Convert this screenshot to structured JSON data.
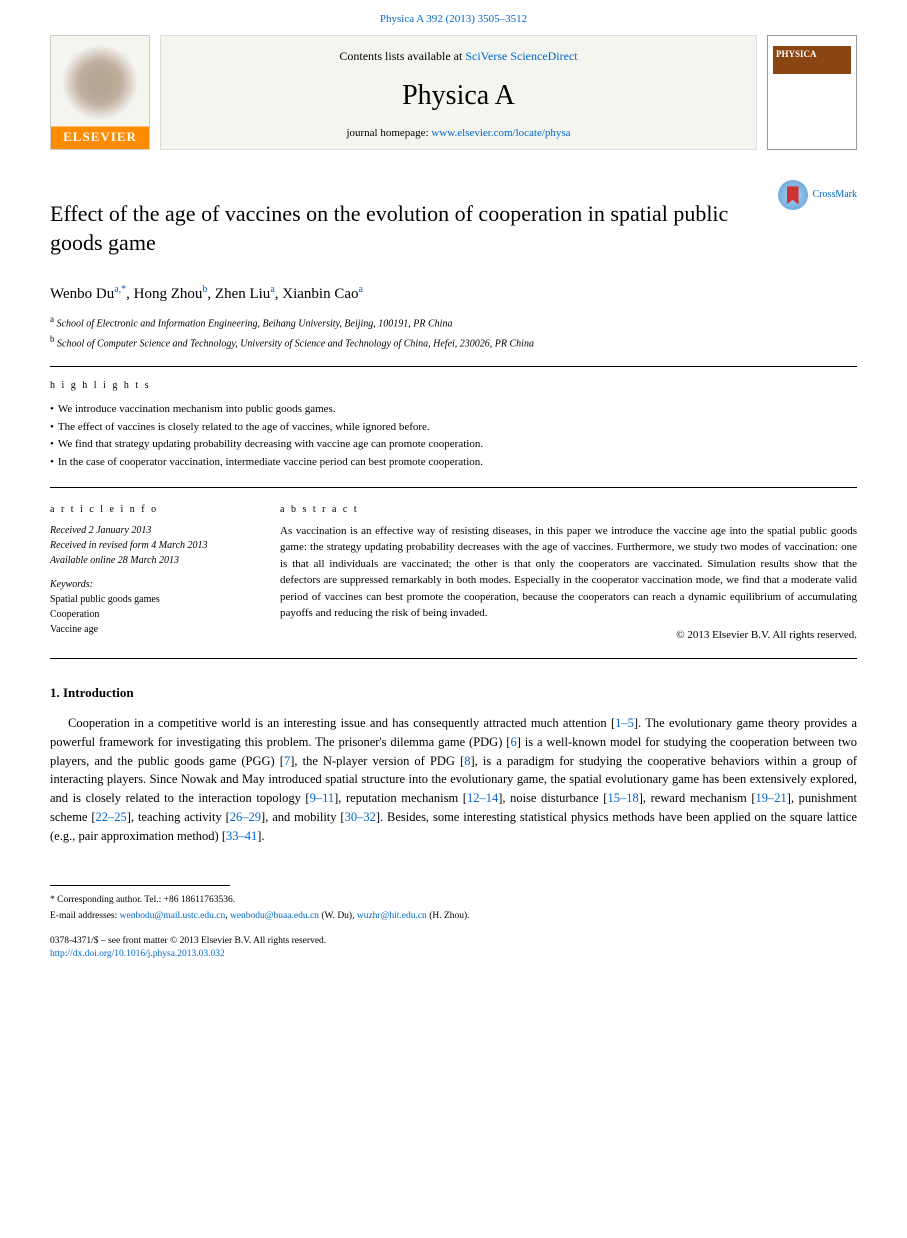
{
  "citation": "Physica A 392 (2013) 3505–3512",
  "banner": {
    "contents_prefix": "Contents lists available at ",
    "contents_link": "SciVerse ScienceDirect",
    "journal": "Physica A",
    "homepage_prefix": "journal homepage: ",
    "homepage_link": "www.elsevier.com/locate/physa",
    "elsevier": "ELSEVIER",
    "cover_label": "PHYSICA"
  },
  "crossmark": "CrossMark",
  "title": "Effect of the age of vaccines on the evolution of cooperation in spatial public goods game",
  "authors": [
    {
      "name": "Wenbo Du",
      "sup": "a,*"
    },
    {
      "name": "Hong Zhou",
      "sup": "b"
    },
    {
      "name": "Zhen Liu",
      "sup": "a"
    },
    {
      "name": "Xianbin Cao",
      "sup": "a"
    }
  ],
  "affiliations": [
    {
      "sup": "a",
      "text": "School of Electronic and Information Engineering, Beihang University, Beijing, 100191, PR China"
    },
    {
      "sup": "b",
      "text": "School of Computer Science and Technology, University of Science and Technology of China, Hefei, 230026, PR China"
    }
  ],
  "highlights_label": "h i g h l i g h t s",
  "highlights": [
    "We introduce vaccination mechanism into public goods games.",
    "The effect of vaccines is closely related to the age of vaccines, while ignored before.",
    "We find that strategy updating probability decreasing with vaccine age can promote cooperation.",
    "In the case of cooperator vaccination, intermediate vaccine period can best promote cooperation."
  ],
  "article_info_label": "a r t i c l e    i n f o",
  "history": {
    "received": "Received 2 January 2013",
    "revised": "Received in revised form 4 March 2013",
    "available": "Available online 28 March 2013"
  },
  "keywords_label": "Keywords:",
  "keywords": [
    "Spatial public goods games",
    "Cooperation",
    "Vaccine age"
  ],
  "abstract_label": "a b s t r a c t",
  "abstract": "As vaccination is an effective way of resisting diseases, in this paper we introduce the vaccine age into the spatial public goods game: the strategy updating probability decreases with the age of vaccines. Furthermore, we study two modes of vaccination: one is that all individuals are vaccinated; the other is that only the cooperators are vaccinated. Simulation results show that the defectors are suppressed remarkably in both modes. Especially in the cooperator vaccination mode, we find that a moderate valid period of vaccines can best promote the cooperation, because the cooperators can reach a dynamic equilibrium of accumulating payoffs and reducing the risk of being invaded.",
  "copyright": "© 2013 Elsevier B.V. All rights reserved.",
  "section": "1. Introduction",
  "body": "Cooperation in a competitive world is an interesting issue and has consequently attracted much attention [1–5]. The evolutionary game theory provides a powerful framework for investigating this problem. The prisoner's dilemma game (PDG) [6] is a well-known model for studying the cooperation between two players, and the public goods game (PGG) [7], the N-player version of PDG [8], is a paradigm for studying the cooperative behaviors within a group of interacting players. Since Nowak and May introduced spatial structure into the evolutionary game, the spatial evolutionary game has been extensively explored, and is closely related to the interaction topology [9–11], reputation mechanism [12–14], noise disturbance [15–18], reward mechanism [19–21], punishment scheme [22–25], teaching activity [26–29], and mobility [30–32]. Besides, some interesting statistical physics methods have been applied on the square lattice (e.g., pair approximation method) [33–41].",
  "footnote_marker": "* Corresponding author. Tel.: +86 18611763536.",
  "footnote_email_label": "E-mail addresses: ",
  "emails": [
    "wenbodu@mail.ustc.edu.cn",
    "wenbodu@buaa.edu.cn"
  ],
  "email_author1": " (W. Du), ",
  "email3": "wuzhr@hit.edu.cn",
  "email_author2": " (H. Zhou).",
  "bottom_line": "0378-4371/$ – see front matter © 2013 Elsevier B.V. All rights reserved.",
  "doi": "http://dx.doi.org/10.1016/j.physa.2013.03.032"
}
